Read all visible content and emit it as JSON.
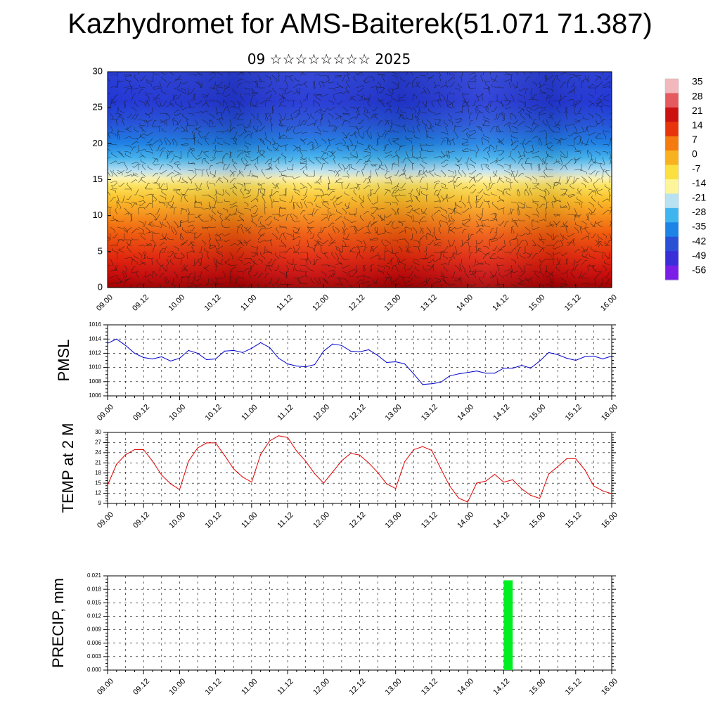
{
  "title": "Kazhydromet for AMS-Baiterek(51.071 71.387)",
  "subtitle": "09 ☆☆☆☆☆☆☆☆ 2025",
  "chart_data": [
    {
      "type": "heatmap",
      "ylim": [
        0,
        30
      ],
      "yticks": [
        "0",
        "5",
        "10",
        "15",
        "20",
        "25",
        "30"
      ],
      "xticks": [
        "09.00",
        "09.12",
        "10.00",
        "10.12",
        "11.00",
        "11.12",
        "12.00",
        "12.12",
        "13.00",
        "13.12",
        "14.00",
        "14.12",
        "15.00",
        "15.12",
        "16.00"
      ],
      "colorbar": {
        "labels": [
          "35",
          "28",
          "21",
          "14",
          "7",
          "0",
          "-7",
          "-14",
          "-21",
          "-28",
          "-35",
          "-42",
          "-49",
          "-56"
        ],
        "colors": [
          "#f2b8bc",
          "#e55a5e",
          "#cc1111",
          "#e8340c",
          "#f37b10",
          "#f9b21f",
          "#fbe040",
          "#fef59a",
          "#b8e2f2",
          "#3fb5ef",
          "#1c84e6",
          "#2a50d6",
          "#3a2ed8",
          "#7a1ee8"
        ]
      }
    },
    {
      "type": "line",
      "ylabel": "PMSL",
      "ylim": [
        1006,
        1016
      ],
      "yticks": [
        "1006",
        "1008",
        "1010",
        "1012",
        "1014",
        "1016"
      ],
      "xticks": [
        "09.00",
        "09.12",
        "10.00",
        "10.12",
        "11.00",
        "11.12",
        "12.00",
        "12.12",
        "13.00",
        "13.12",
        "14.00",
        "14.12",
        "15.00",
        "15.12",
        "16.00"
      ],
      "color": "#0000cc",
      "x": [
        0,
        3,
        6,
        9,
        12,
        15,
        18,
        21,
        24,
        27,
        30,
        33,
        36,
        39,
        42,
        45,
        48,
        51,
        54,
        57,
        60,
        63,
        66,
        69,
        72,
        75,
        78,
        81,
        84,
        87,
        90,
        93,
        96,
        99,
        102,
        105,
        108,
        111,
        114,
        117,
        120,
        123,
        126,
        129,
        132,
        135,
        138,
        141,
        144,
        147,
        150,
        153,
        156,
        159,
        162,
        165,
        168
      ],
      "values": [
        1013.4,
        1014,
        1013.1,
        1012,
        1011.4,
        1011.2,
        1011.5,
        1010.9,
        1011.3,
        1012.4,
        1012,
        1011.1,
        1011.2,
        1012.3,
        1012.4,
        1012.1,
        1012.7,
        1013.5,
        1012.8,
        1011.3,
        1010.5,
        1010.2,
        1010.1,
        1010.4,
        1012.3,
        1013.3,
        1013.1,
        1012.3,
        1012.2,
        1012.5,
        1011.7,
        1010.7,
        1010.8,
        1010.5,
        1009.1,
        1007.6,
        1007.7,
        1007.9,
        1008.8,
        1009.1,
        1009.3,
        1009.5,
        1009.2,
        1009.2,
        1009.9,
        1009.9,
        1010.3,
        1009.9,
        1010.9,
        1012.1,
        1011.8,
        1011.3,
        1011,
        1011.5,
        1011.6,
        1011.2,
        1011.6
      ]
    },
    {
      "type": "line",
      "ylabel": "TEMP at 2 M",
      "ylim": [
        9,
        30
      ],
      "yticks": [
        "9",
        "12",
        "15",
        "18",
        "21",
        "24",
        "27",
        "30"
      ],
      "xticks": [
        "09.00",
        "09.12",
        "10.00",
        "10.12",
        "11.00",
        "11.12",
        "12.00",
        "12.12",
        "13.00",
        "13.12",
        "14.00",
        "14.12",
        "15.00",
        "15.12",
        "16.00"
      ],
      "color": "#dd0000",
      "x": [
        0,
        3,
        6,
        9,
        12,
        15,
        18,
        21,
        24,
        27,
        30,
        33,
        36,
        39,
        42,
        45,
        48,
        51,
        54,
        57,
        60,
        63,
        66,
        69,
        72,
        75,
        78,
        81,
        84,
        87,
        90,
        93,
        96,
        99,
        102,
        105,
        108,
        111,
        114,
        117,
        120,
        123,
        126,
        129,
        132,
        135,
        138,
        141,
        144,
        147,
        150,
        153,
        156,
        159,
        162,
        165,
        168
      ],
      "values": [
        14.4,
        20.6,
        23.4,
        24.9,
        24.9,
        21.5,
        17.4,
        14.8,
        13.1,
        21.5,
        25.4,
        26.9,
        26.9,
        23.2,
        19.2,
        16.8,
        15.3,
        23.5,
        27.5,
        29,
        28.5,
        24.5,
        21.5,
        17.8,
        15,
        18.3,
        21.6,
        23.8,
        23.3,
        21,
        18.2,
        14.8,
        13.4,
        21.3,
        24.9,
        25.8,
        24.7,
        19.4,
        14.2,
        10.6,
        9.4,
        15,
        15.6,
        17.6,
        15.3,
        16,
        13.3,
        11.4,
        10.5,
        17.7,
        19.9,
        22.2,
        22.2,
        19,
        14.2,
        12.7,
        11.9
      ]
    },
    {
      "type": "bar",
      "ylabel": "PRECIP, mm",
      "ylim": [
        0,
        0.021
      ],
      "yticks": [
        "0.000",
        "0.003",
        "0.006",
        "0.009",
        "0.012",
        "0.015",
        "0.018",
        "0.021"
      ],
      "xticks": [
        "09.00",
        "09.12",
        "10.00",
        "10.12",
        "11.00",
        "11.12",
        "12.00",
        "12.12",
        "13.00",
        "13.12",
        "14.00",
        "14.12",
        "15.00",
        "15.12",
        "16.00"
      ],
      "color": "#00ee22",
      "bars": [
        {
          "x": 132,
          "width": 3,
          "value": 0.02
        }
      ]
    }
  ]
}
